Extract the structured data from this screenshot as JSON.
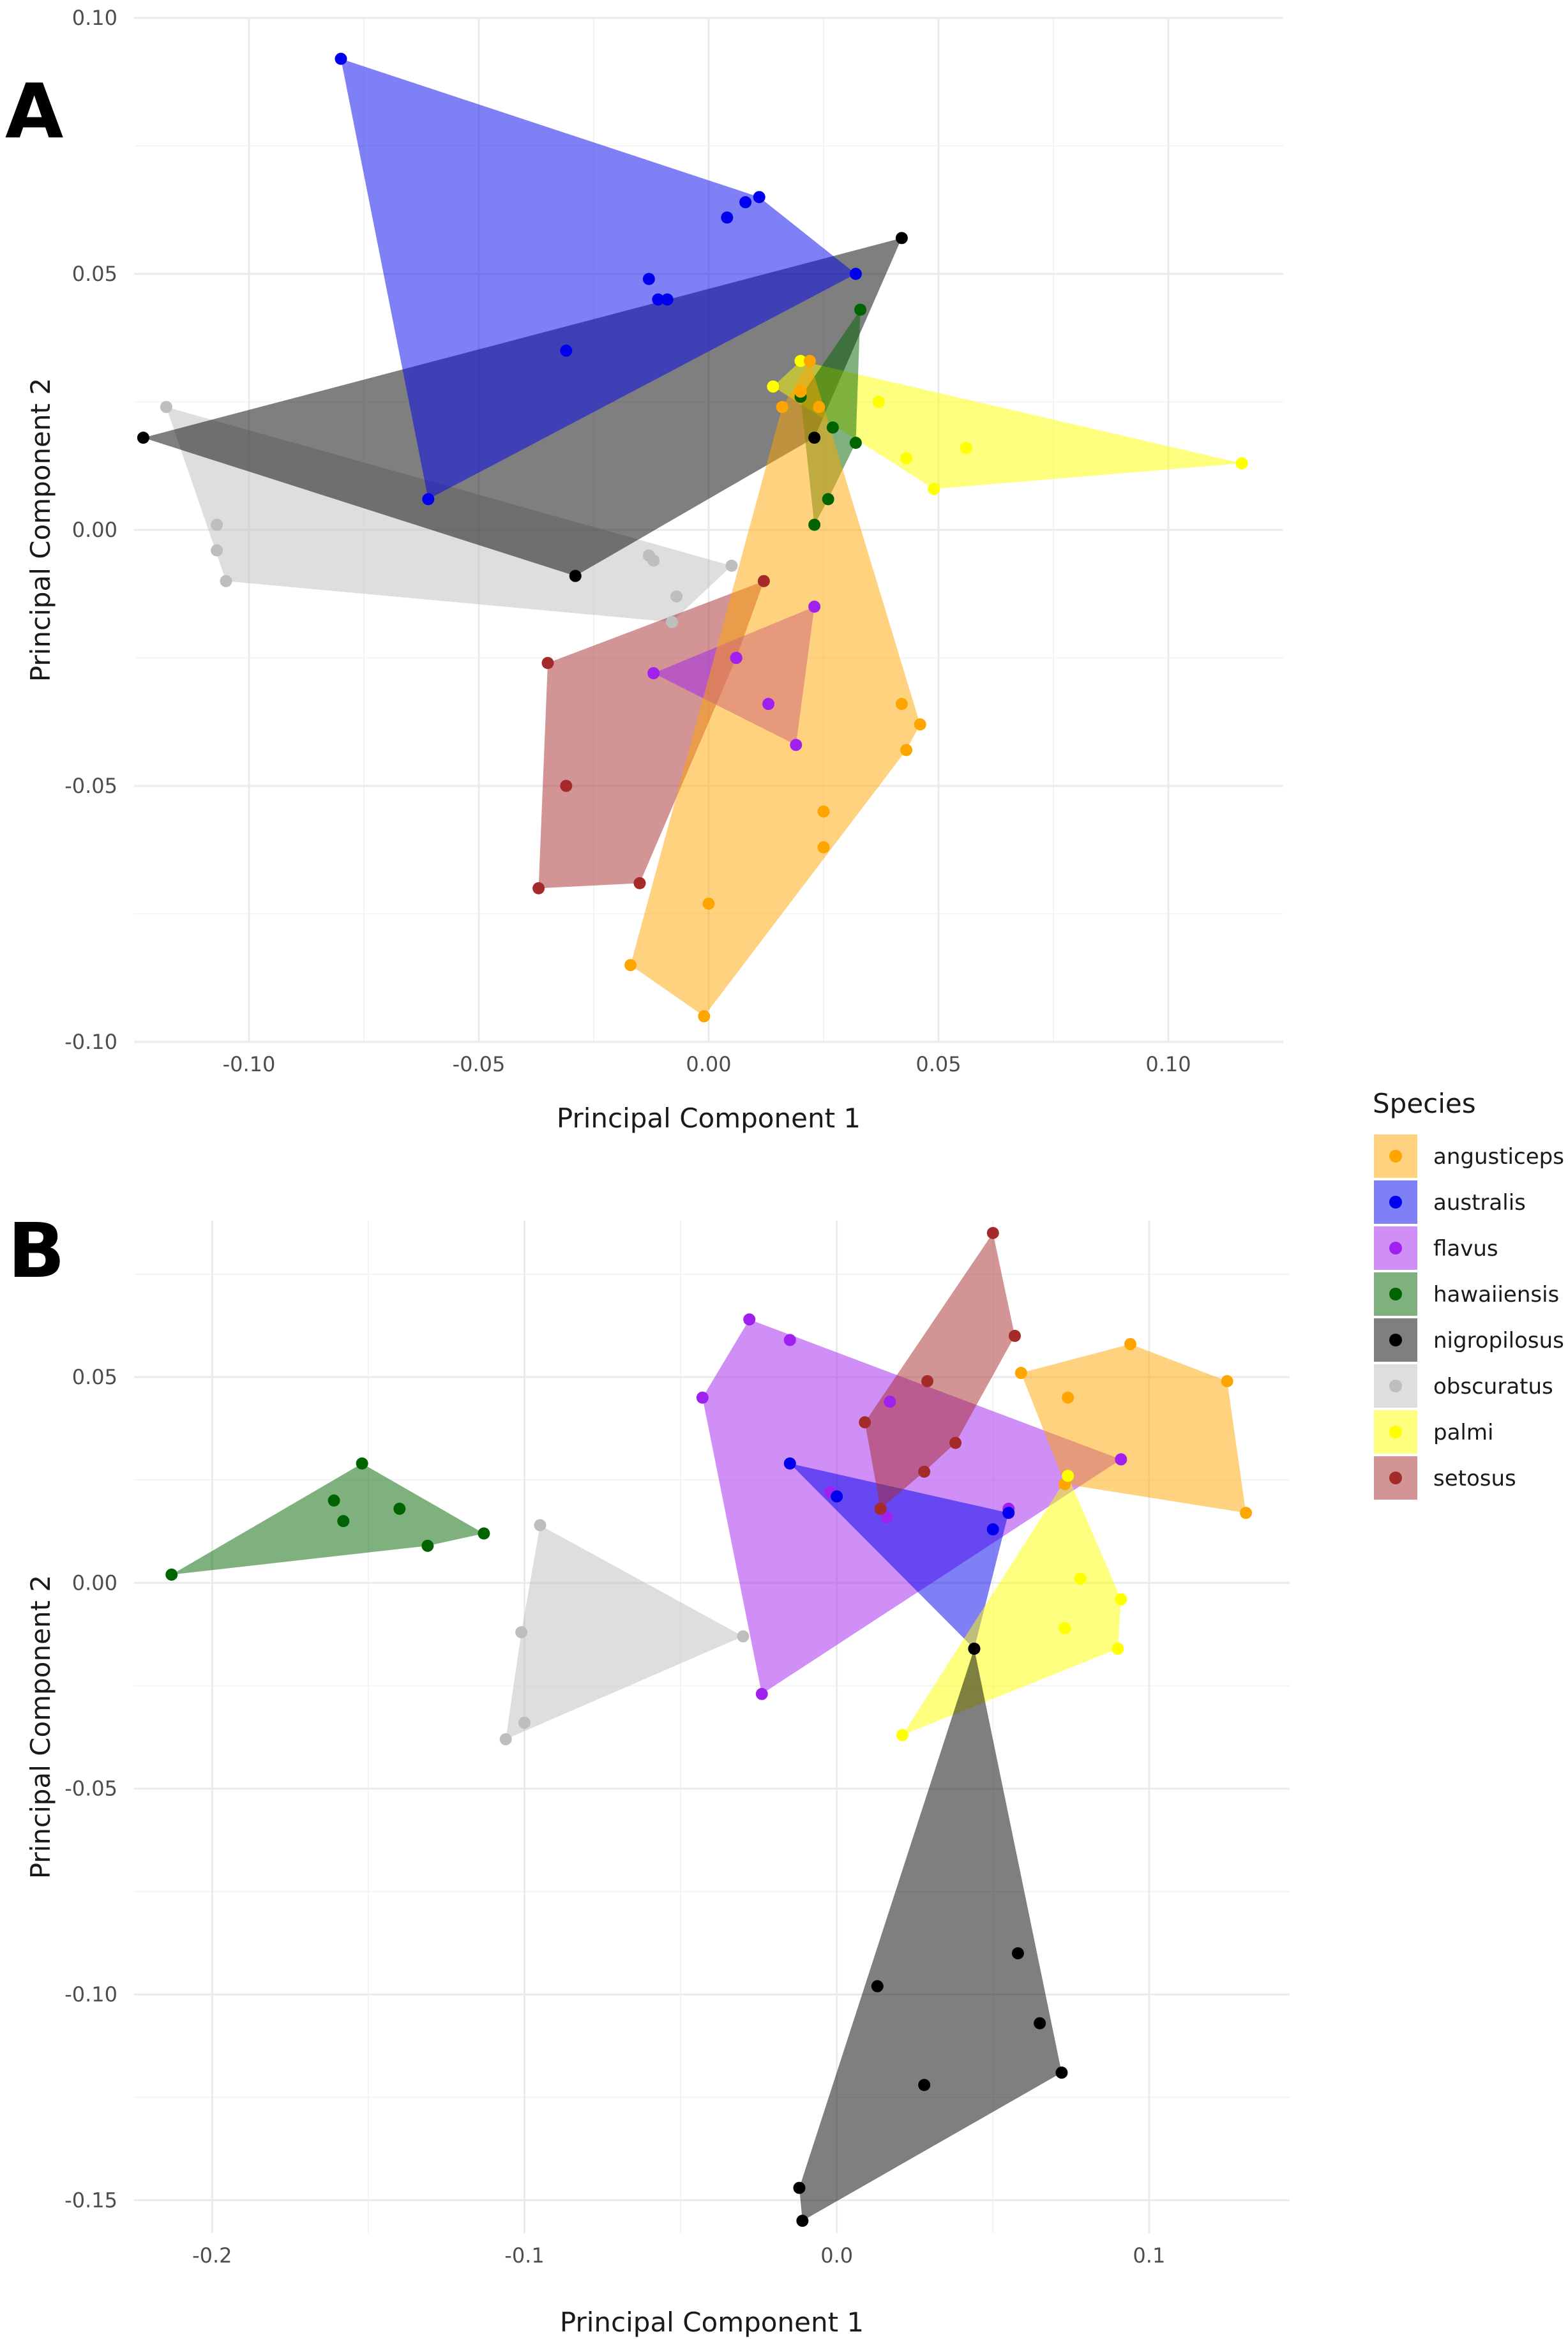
{
  "legend": {
    "title": "Species",
    "species": [
      "angusticeps",
      "australis",
      "flavus",
      "hawaiiensis",
      "nigropilosus",
      "obscuratus",
      "palmi",
      "setosus"
    ]
  },
  "colors": {
    "angusticeps": "#FFA500",
    "australis": "#0000EE",
    "flavus": "#A020F0",
    "hawaiiensis": "#006400",
    "nigropilosus": "#000000",
    "obscuratus": "#BEBEBE",
    "palmi": "#FFFF00",
    "setosus": "#A52A2A"
  },
  "chart_data": [
    {
      "type": "scatter",
      "panel_label": "A",
      "title": "",
      "xlabel": "Principal Component 1",
      "ylabel": "Principal Component 2",
      "xlim": [
        -0.125,
        0.125
      ],
      "ylim": [
        -0.1,
        0.1
      ],
      "xticks": [
        -0.1,
        -0.05,
        0.0,
        0.05,
        0.1
      ],
      "xtick_labels": [
        "-0.10",
        "-0.05",
        "0.00",
        "0.05",
        "0.10"
      ],
      "yticks": [
        -0.1,
        -0.05,
        0.0,
        0.05,
        0.1
      ],
      "ytick_labels": [
        "-0.10",
        "-0.05",
        "0.00",
        "0.05",
        "0.10"
      ],
      "grid": true,
      "series": [
        {
          "name": "obscuratus",
          "points": [
            [
              -0.118,
              0.024
            ],
            [
              -0.107,
              0.001
            ],
            [
              -0.107,
              -0.004
            ],
            [
              -0.105,
              -0.01
            ],
            [
              -0.013,
              -0.005
            ],
            [
              -0.012,
              -0.006
            ],
            [
              -0.007,
              -0.013
            ],
            [
              -0.008,
              -0.018
            ],
            [
              0.005,
              -0.007
            ]
          ]
        },
        {
          "name": "nigropilosus",
          "points": [
            [
              -0.123,
              0.018
            ],
            [
              -0.029,
              -0.009
            ],
            [
              0.023,
              0.018
            ],
            [
              0.042,
              0.057
            ]
          ]
        },
        {
          "name": "australis",
          "points": [
            [
              -0.08,
              0.092
            ],
            [
              -0.061,
              0.006
            ],
            [
              -0.031,
              0.035
            ],
            [
              -0.013,
              0.049
            ],
            [
              -0.011,
              0.045
            ],
            [
              -0.009,
              0.045
            ],
            [
              0.004,
              0.061
            ],
            [
              0.008,
              0.064
            ],
            [
              0.011,
              0.065
            ],
            [
              0.032,
              0.05
            ]
          ]
        },
        {
          "name": "palmi",
          "points": [
            [
              0.014,
              0.028
            ],
            [
              0.02,
              0.033
            ],
            [
              0.037,
              0.025
            ],
            [
              0.043,
              0.014
            ],
            [
              0.049,
              0.008
            ],
            [
              0.056,
              0.016
            ],
            [
              0.116,
              0.013
            ]
          ]
        },
        {
          "name": "hawaiiensis",
          "points": [
            [
              0.023,
              0.001
            ],
            [
              0.026,
              0.006
            ],
            [
              0.027,
              0.02
            ],
            [
              0.032,
              0.017
            ],
            [
              0.033,
              0.043
            ],
            [
              0.02,
              0.026
            ]
          ]
        },
        {
          "name": "setosus",
          "points": [
            [
              -0.035,
              -0.026
            ],
            [
              -0.031,
              -0.05
            ],
            [
              -0.037,
              -0.07
            ],
            [
              -0.015,
              -0.069
            ],
            [
              0.012,
              -0.01
            ],
            [
              0.006,
              -0.025
            ]
          ]
        },
        {
          "name": "flavus",
          "points": [
            [
              -0.012,
              -0.028
            ],
            [
              0.006,
              -0.025
            ],
            [
              0.013,
              -0.034
            ],
            [
              0.019,
              -0.042
            ],
            [
              0.023,
              -0.015
            ]
          ]
        },
        {
          "name": "angusticeps",
          "points": [
            [
              -0.017,
              -0.085
            ],
            [
              -0.001,
              -0.095
            ],
            [
              0.0,
              -0.073
            ],
            [
              0.025,
              -0.062
            ],
            [
              0.025,
              -0.055
            ],
            [
              0.042,
              -0.034
            ],
            [
              0.043,
              -0.043
            ],
            [
              0.046,
              -0.038
            ],
            [
              0.016,
              0.024
            ],
            [
              0.02,
              0.027
            ],
            [
              0.022,
              0.033
            ],
            [
              0.024,
              0.024
            ]
          ]
        }
      ]
    },
    {
      "type": "scatter",
      "panel_label": "B",
      "title": "",
      "xlabel": "Principal Component 1",
      "ylabel": "Principal Component 2",
      "xlim": [
        -0.225,
        0.145
      ],
      "ylim": [
        -0.158,
        0.088
      ],
      "xticks": [
        -0.2,
        -0.1,
        0.0,
        0.1
      ],
      "xtick_labels": [
        "-0.2",
        "-0.1",
        "0.0",
        "0.1"
      ],
      "yticks": [
        -0.15,
        -0.1,
        -0.05,
        0.0,
        0.05
      ],
      "ytick_labels": [
        "-0.15",
        "-0.10",
        "-0.05",
        "0.00",
        "0.05"
      ],
      "grid": true,
      "series": [
        {
          "name": "hawaiiensis",
          "points": [
            [
              -0.213,
              0.002
            ],
            [
              -0.161,
              0.02
            ],
            [
              -0.158,
              0.015
            ],
            [
              -0.152,
              0.029
            ],
            [
              -0.14,
              0.018
            ],
            [
              -0.131,
              0.009
            ],
            [
              -0.113,
              0.012
            ]
          ]
        },
        {
          "name": "obscuratus",
          "points": [
            [
              -0.095,
              0.014
            ],
            [
              -0.101,
              -0.012
            ],
            [
              -0.1,
              -0.034
            ],
            [
              -0.106,
              -0.038
            ],
            [
              -0.03,
              -0.013
            ]
          ]
        },
        {
          "name": "flavus",
          "points": [
            [
              -0.043,
              0.045
            ],
            [
              -0.028,
              0.064
            ],
            [
              -0.015,
              0.059
            ],
            [
              -0.024,
              -0.027
            ],
            [
              0.016,
              0.016
            ],
            [
              0.055,
              0.018
            ],
            [
              0.091,
              0.03
            ],
            [
              0.017,
              0.044
            ],
            [
              -0.002,
              0.022
            ]
          ]
        },
        {
          "name": "australis",
          "points": [
            [
              -0.015,
              0.029
            ],
            [
              0.0,
              0.021
            ],
            [
              0.044,
              -0.016
            ],
            [
              0.05,
              0.013
            ],
            [
              0.055,
              0.017
            ]
          ]
        },
        {
          "name": "setosus",
          "points": [
            [
              0.05,
              0.085
            ],
            [
              0.057,
              0.06
            ],
            [
              0.029,
              0.049
            ],
            [
              0.009,
              0.039
            ],
            [
              0.028,
              0.027
            ],
            [
              0.038,
              0.034
            ],
            [
              0.014,
              0.018
            ]
          ]
        },
        {
          "name": "angusticeps",
          "points": [
            [
              0.059,
              0.051
            ],
            [
              0.074,
              0.045
            ],
            [
              0.094,
              0.058
            ],
            [
              0.125,
              0.049
            ],
            [
              0.131,
              0.017
            ],
            [
              0.073,
              0.024
            ]
          ]
        },
        {
          "name": "palmi",
          "points": [
            [
              0.021,
              -0.037
            ],
            [
              0.073,
              -0.011
            ],
            [
              0.078,
              0.001
            ],
            [
              0.09,
              -0.016
            ],
            [
              0.091,
              -0.004
            ],
            [
              0.074,
              0.026
            ]
          ]
        },
        {
          "name": "nigropilosus",
          "points": [
            [
              -0.012,
              -0.147
            ],
            [
              -0.011,
              -0.155
            ],
            [
              0.013,
              -0.098
            ],
            [
              0.028,
              -0.122
            ],
            [
              0.058,
              -0.09
            ],
            [
              0.065,
              -0.107
            ],
            [
              0.072,
              -0.119
            ],
            [
              0.044,
              -0.016
            ]
          ]
        }
      ]
    }
  ]
}
